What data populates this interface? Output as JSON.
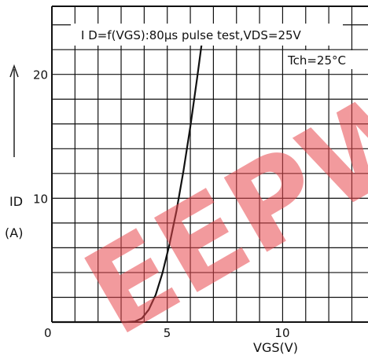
{
  "chart_data": {
    "type": "line",
    "title": "I D=f(VGS):80µs pulse test,VDS=25V",
    "annotation": "Tch=25°C",
    "xlabel": "VGS(V)",
    "ylabel": "ID",
    "ylabel_unit": "(A)",
    "x_ticks": [
      {
        "value": 0,
        "label": "0"
      },
      {
        "value": 5,
        "label": "5"
      },
      {
        "value": 10,
        "label": "10"
      }
    ],
    "y_ticks": [
      {
        "value": 10,
        "label": "10"
      },
      {
        "value": 20,
        "label": "20"
      }
    ],
    "xlim": [
      0,
      13.7
    ],
    "ylim": [
      0,
      25.5
    ],
    "grid": true,
    "series": [
      {
        "color": "#111111",
        "x": [
          0,
          2.5,
          3.2,
          3.6,
          3.9,
          4.2,
          4.5,
          4.8,
          5.1,
          5.4,
          5.7,
          6.0,
          6.3,
          6.6
        ],
        "y": [
          0,
          0,
          0,
          0.05,
          0.3,
          1.0,
          2.2,
          4.0,
          6.3,
          9.0,
          12.2,
          15.8,
          19.8,
          24.0
        ]
      }
    ]
  },
  "watermark": {
    "text": "EEPW",
    "color": "#e8474c"
  }
}
